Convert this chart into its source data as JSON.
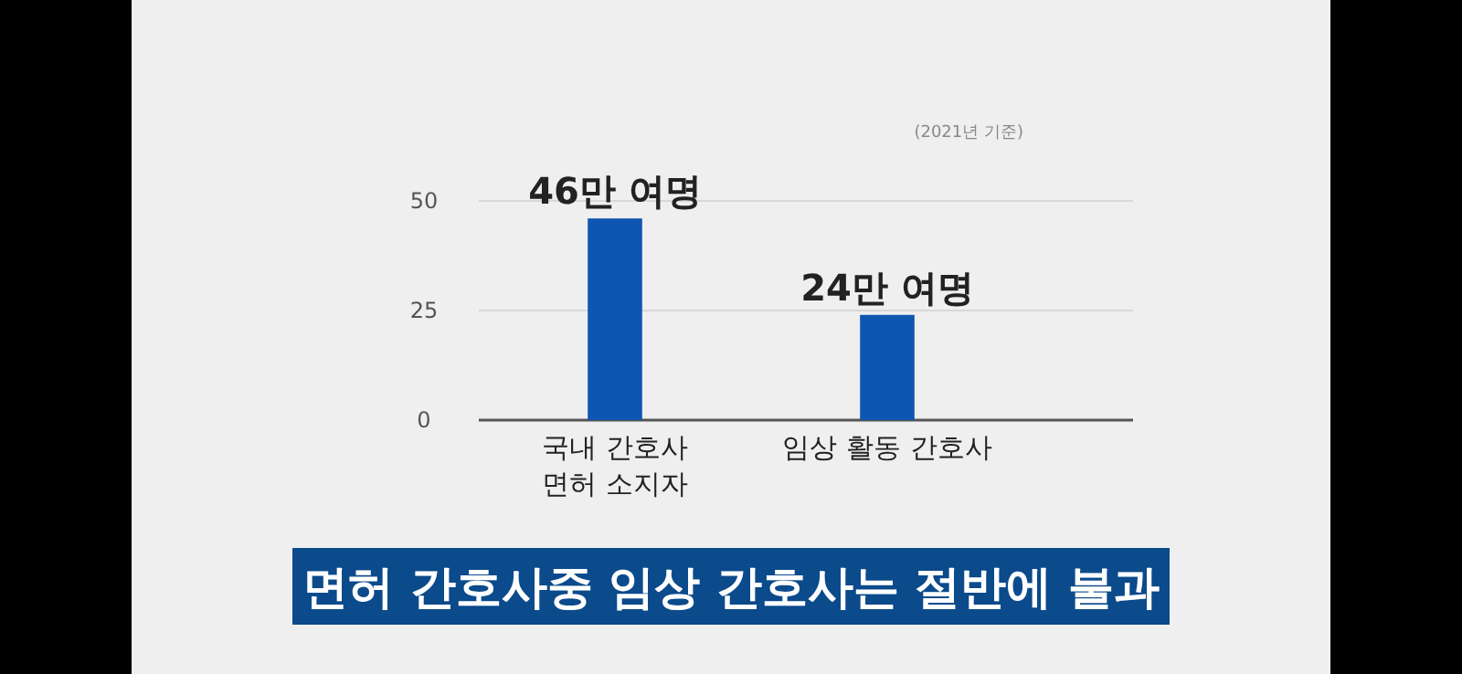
{
  "chart_data": {
    "type": "bar",
    "subtitle": "(2021년 기준)",
    "categories": [
      "국내 간호사\n면허 소지자",
      "임상 활동 간호사"
    ],
    "values": [
      46,
      24
    ],
    "value_labels": [
      "46만 여명",
      "24만 여명"
    ],
    "color": "#0f56b3",
    "ylim": [
      0,
      50
    ],
    "yticks": [
      0,
      25,
      50
    ],
    "grid": "y",
    "annotations": [
      "면허 간호사중 임상 간호사는 절반에 불과"
    ]
  }
}
